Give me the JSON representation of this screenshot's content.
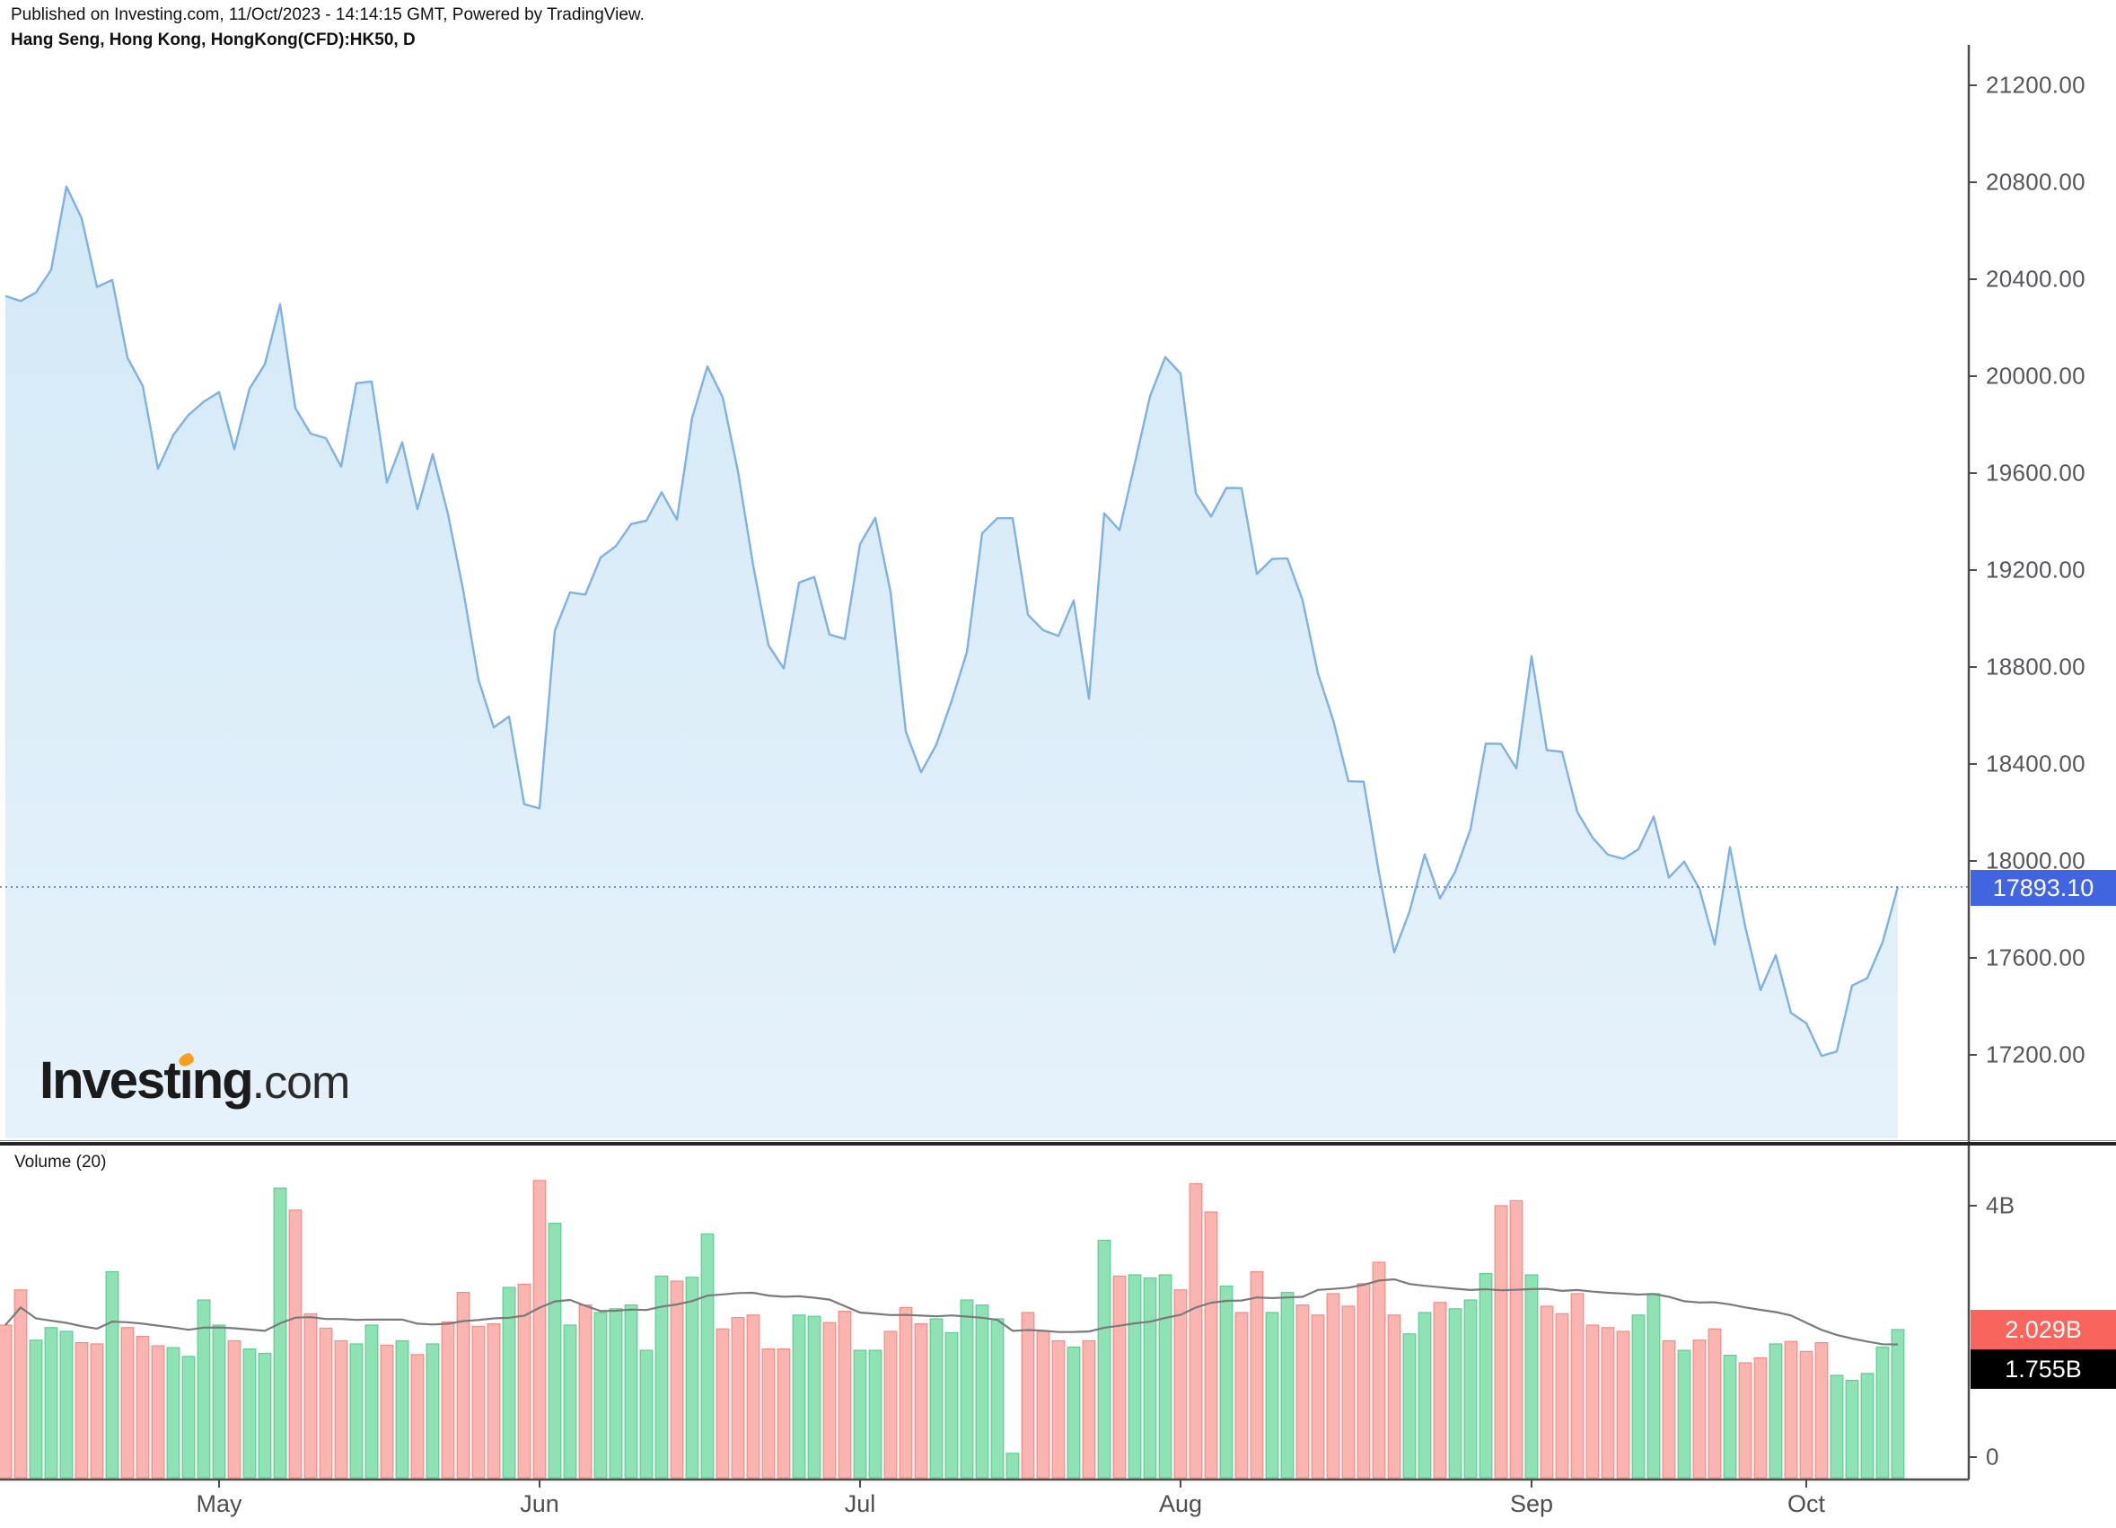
{
  "header": {
    "published": "Published on Investing.com, 11/Oct/2023 - 14:14:15 GMT, Powered by TradingView.",
    "instrument": "Hang Seng, Hong Kong, HongKong(CFD):HK50, D"
  },
  "watermark": {
    "brand_a": "Invest",
    "brand_i": "ı",
    "brand_b": "ng",
    "suffix": ".com"
  },
  "volume_pane": {
    "indicator_label": "Volume (20)",
    "last_volume_label": "2.029B",
    "volume_ma_label": "1.755B"
  },
  "price_pane": {
    "last_price_label": "17893.10"
  },
  "colors": {
    "area_fill_top": "#D3E9F7",
    "area_fill_bottom": "#E6F2FB",
    "price_line": "#7FB1E2",
    "last_price_line": "#3E63DE",
    "price_badge_bg": "#4165E1",
    "vol_up_fill": "#8FE2B3",
    "vol_up_stroke": "#5ECD92",
    "vol_down_fill": "#FBB5B0",
    "vol_down_stroke": "#F28C85",
    "vol_ma_line": "#7a7a7a",
    "vol_badge_bg": "#F9655C",
    "vol_ma_badge_bg": "#000000",
    "axis_line": "#4c4c4c",
    "axis_text": "#55565b"
  },
  "chart_data": {
    "type": "area",
    "title": "Hang Seng (HK50) daily close with Volume (20)",
    "xlabel": "",
    "ylabel": "",
    "price_ylim": [
      17054,
      21552
    ],
    "price_axis_ticks": [
      {
        "value": 21200,
        "label": "21200.00"
      },
      {
        "value": 20800,
        "label": "20800.00"
      },
      {
        "value": 20400,
        "label": "20400.00"
      },
      {
        "value": 20000,
        "label": "20000.00"
      },
      {
        "value": 19600,
        "label": "19600.00"
      },
      {
        "value": 19200,
        "label": "19200.00"
      },
      {
        "value": 18800,
        "label": "18800.00"
      },
      {
        "value": 18400,
        "label": "18400.00"
      },
      {
        "value": 18000,
        "label": "18000.00"
      },
      {
        "value": 17600,
        "label": "17600.00"
      },
      {
        "value": 17200,
        "label": "17200.00"
      }
    ],
    "volume_axis_ticks": [
      {
        "value": 4.0,
        "label": "4B"
      },
      {
        "value": 0.0,
        "label": "0"
      }
    ],
    "month_ticks": [
      {
        "label": "May",
        "index": 14
      },
      {
        "label": "Jun",
        "index": 35
      },
      {
        "label": "Jul",
        "index": 56
      },
      {
        "label": "Aug",
        "index": 77
      },
      {
        "label": "Sep",
        "index": 100
      },
      {
        "label": "Oct",
        "index": 118
      }
    ],
    "last_price": 17893.1,
    "last_volume_b": 2.029,
    "volume_ma20_b": 1.755,
    "close": [
      20331,
      20310,
      20345,
      20439,
      20782,
      20651,
      20368,
      20397,
      20076,
      19960,
      19618,
      19757,
      19840,
      19895,
      19934,
      19699,
      19949,
      20049,
      20297,
      19868,
      19763,
      19744,
      19627,
      19971,
      19978,
      19561,
      19727,
      19451,
      19678,
      19431,
      19116,
      18747,
      18551,
      18596,
      18234,
      18217,
      18950,
      19108,
      19099,
      19252,
      19299,
      19390,
      19404,
      19521,
      19408,
      19829,
      20040,
      19913,
      19607,
      19218,
      18890,
      18794,
      19148,
      19172,
      18934,
      18916,
      19307,
      19416,
      19110,
      18533,
      18366,
      18480,
      18660,
      18861,
      19351,
      19414,
      19414,
      19016,
      18952,
      18928,
      19075,
      18669,
      19434,
      19365,
      19639,
      19917,
      20079,
      20011,
      19517,
      19421,
      19539,
      19538,
      19184,
      19246,
      19248,
      19075,
      18774,
      18581,
      18329,
      18327,
      17951,
      17623,
      17791,
      18027,
      17846,
      17956,
      18131,
      18484,
      18483,
      18382,
      18844,
      18457,
      18450,
      18202,
      18096,
      18026,
      18009,
      18048,
      18183,
      17931,
      17997,
      17886,
      17655,
      18057,
      17729,
      17467,
      17612,
      17373,
      17331,
      17196,
      17214,
      17486,
      17517,
      17665,
      17893.1
    ],
    "volume_b": [
      2.1,
      2.66,
      1.86,
      2.06,
      2.0,
      1.82,
      1.8,
      2.95,
      2.06,
      1.92,
      1.77,
      1.74,
      1.6,
      2.5,
      2.1,
      1.85,
      1.72,
      1.65,
      4.28,
      3.93,
      2.28,
      2.05,
      1.85,
      1.8,
      2.1,
      1.78,
      1.85,
      1.63,
      1.8,
      2.15,
      2.62,
      2.08,
      2.12,
      2.7,
      2.75,
      4.4,
      3.72,
      2.1,
      2.42,
      2.3,
      2.36,
      2.42,
      1.7,
      2.88,
      2.8,
      2.86,
      3.55,
      2.04,
      2.22,
      2.26,
      1.72,
      1.72,
      2.26,
      2.24,
      2.14,
      2.32,
      1.7,
      1.7,
      2.0,
      2.38,
      2.12,
      2.2,
      1.98,
      2.5,
      2.42,
      2.2,
      0.06,
      2.3,
      2.0,
      1.85,
      1.75,
      1.85,
      3.45,
      2.88,
      2.9,
      2.85,
      2.9,
      2.66,
      4.35,
      3.9,
      2.72,
      2.3,
      2.95,
      2.3,
      2.62,
      2.42,
      2.26,
      2.6,
      2.4,
      2.76,
      3.1,
      2.26,
      1.96,
      2.3,
      2.46,
      2.36,
      2.5,
      2.92,
      4.0,
      4.08,
      2.9,
      2.4,
      2.28,
      2.6,
      2.1,
      2.06,
      2.0,
      2.26,
      2.6,
      1.85,
      1.7,
      1.86,
      2.04,
      1.62,
      1.5,
      1.58,
      1.8,
      1.84,
      1.68,
      1.82,
      1.3,
      1.22,
      1.33,
      1.75,
      2.029
    ]
  }
}
